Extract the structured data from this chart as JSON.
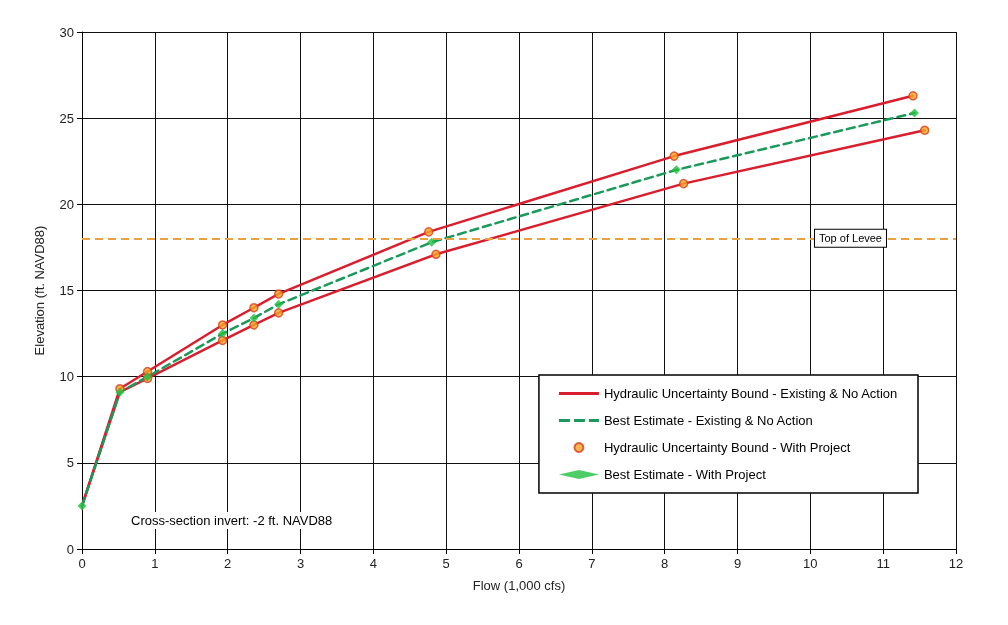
{
  "chart_data": {
    "type": "line",
    "xlabel": "Flow (1,000 cfs)",
    "ylabel": "Elevation (ft. NAVD88)",
    "xlim": [
      0,
      12
    ],
    "xticks": [
      0,
      1,
      2,
      3,
      4,
      5,
      6,
      7,
      8,
      9,
      10,
      11,
      12
    ],
    "ylim": [
      0,
      30
    ],
    "yticks": [
      0,
      5,
      10,
      15,
      20,
      25,
      30
    ],
    "grid": true,
    "legend": "bottom right",
    "series": [
      {
        "name": "Hydraulic Uncertainty Bound - Existing & No Action",
        "color": "#d91e2e",
        "line_style": "solid",
        "marker": "none",
        "x": [
          0,
          0.52,
          0.9,
          1.93,
          2.36,
          2.7,
          4.76,
          8.13,
          11.41
        ],
        "values": [
          2.5,
          9.3,
          10.3,
          13.0,
          14.0,
          14.8,
          18.4,
          22.8,
          26.3
        ]
      },
      {
        "color": "#d91e2e",
        "line_style": "solid",
        "marker": "none",
        "x": [
          0,
          0.52,
          0.9,
          1.93,
          2.36,
          2.7,
          4.86,
          8.26,
          11.57
        ],
        "values": [
          2.5,
          9.1,
          9.9,
          12.1,
          13.0,
          13.7,
          17.1,
          21.2,
          24.3
        ]
      },
      {
        "name": "Best Estimate - Existing & No Action",
        "color": "#1a9a5a",
        "line_style": "dashed",
        "marker": "none",
        "x": [
          0,
          0.52,
          0.9,
          1.93,
          2.36,
          2.7,
          4.8,
          8.16,
          11.43
        ],
        "values": [
          2.5,
          9.1,
          10.0,
          12.5,
          13.4,
          14.2,
          17.8,
          22.0,
          25.3
        ]
      },
      {
        "name": "Hydraulic Uncertainty Bound - With Project",
        "type": "scatter",
        "color": "#f5a623",
        "marker": "circle",
        "x": [
          0.52,
          0.9,
          1.93,
          2.36,
          2.7,
          4.76,
          8.13,
          11.41,
          0.9,
          1.93,
          2.36,
          2.7,
          4.86,
          8.26,
          11.57
        ],
        "values": [
          9.3,
          10.3,
          13.0,
          14.0,
          14.8,
          18.4,
          22.8,
          26.3,
          9.9,
          12.1,
          13.0,
          13.7,
          17.1,
          21.2,
          24.3
        ]
      },
      {
        "name": "Best Estimate - With Project",
        "type": "scatter",
        "color": "#22c040",
        "marker": "diamond",
        "x": [
          0,
          0.52,
          0.9,
          1.93,
          2.36,
          2.7,
          4.8,
          8.16,
          11.43
        ],
        "values": [
          2.5,
          9.1,
          10.0,
          12.5,
          13.4,
          14.2,
          17.8,
          22.0,
          25.3
        ]
      }
    ],
    "ref_lines": [
      {
        "axis": "y",
        "value": 18,
        "label": "Top of Levee",
        "color": "#e8a040",
        "line_style": "dashed"
      }
    ],
    "annotations": [
      "Cross-section invert: -2 ft. NAVD88"
    ]
  }
}
